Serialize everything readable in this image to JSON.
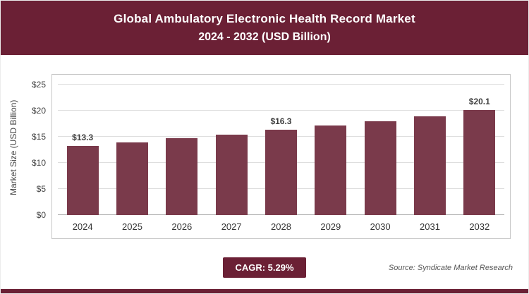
{
  "header": {
    "title_line1": "Global Ambulatory Electronic Health Record Market",
    "title_line2": "2024 - 2032 (USD Billion)"
  },
  "chart_data": {
    "type": "bar",
    "title": "Global Ambulatory Electronic Health Record Market",
    "subtitle": "2024 - 2032 (USD Billion)",
    "categories": [
      "2024",
      "2025",
      "2026",
      "2027",
      "2028",
      "2029",
      "2030",
      "2031",
      "2032"
    ],
    "values": [
      13.3,
      13.9,
      14.7,
      15.4,
      16.3,
      17.1,
      18.0,
      18.9,
      20.1
    ],
    "bar_value_labels": [
      "$13.3",
      "",
      "",
      "",
      "$16.3",
      "",
      "",
      "",
      "$20.1"
    ],
    "xlabel": "",
    "ylabel": "Market Size (USD Billion)",
    "ylim": [
      0,
      25
    ],
    "yticks": [
      "$0",
      "$5",
      "$10",
      "$15",
      "$20",
      "$25"
    ],
    "grid": true,
    "legend_position": "none",
    "bar_color": "#7a3a4b"
  },
  "footer": {
    "cagr_label": "CAGR: 5.29%",
    "source": "Source: Syndicate Market Research"
  },
  "colors": {
    "banner": "#6b2035",
    "bar": "#7a3a4b",
    "accent_strip": "#6b2035"
  }
}
